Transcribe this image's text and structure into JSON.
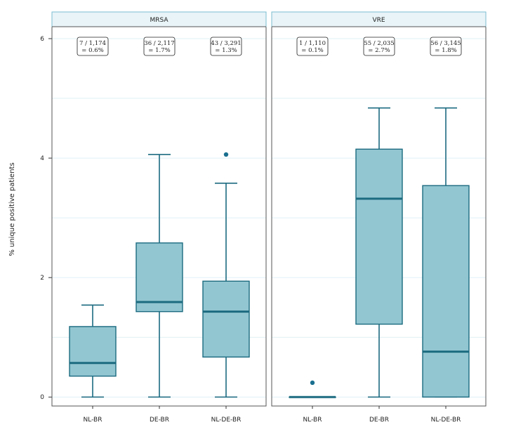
{
  "chart_data": {
    "type": "boxplot",
    "ylabel": "% unique positive patients",
    "xlabel": "",
    "ylim": [
      -0.15,
      6.2
    ],
    "y_ticks": [
      0,
      2,
      4,
      6
    ],
    "y_tick_labels": [
      "0",
      "2",
      "4",
      "6"
    ],
    "categories": [
      "NL-BR",
      "DE-BR",
      "NL-DE-BR"
    ],
    "colors": {
      "box_fill": "#92c6d1",
      "box_stroke": "#1c6b80",
      "strip_fill": "#e8f4f8",
      "strip_stroke": "#7bbcd0",
      "grid": "#dff0f6",
      "outlier": "#1a6f8f"
    },
    "panels": [
      {
        "title": "MRSA",
        "boxes": [
          {
            "category": "NL-BR",
            "min": 0,
            "q1": 0.35,
            "median": 0.57,
            "q3": 1.18,
            "max": 1.54,
            "outliers": [],
            "label_line1": "7 / 1,174",
            "label_line2": "= 0.6%"
          },
          {
            "category": "DE-BR",
            "min": 0,
            "q1": 1.43,
            "median": 1.59,
            "q3": 2.58,
            "max": 4.06,
            "outliers": [],
            "label_line1": "36 / 2,117",
            "label_line2": "= 1.7%"
          },
          {
            "category": "NL-DE-BR",
            "min": 0,
            "q1": 0.67,
            "median": 1.43,
            "q3": 1.94,
            "max": 3.58,
            "outliers": [
              4.06
            ],
            "label_line1": "43 / 3,291",
            "label_line2": "= 1.3%"
          }
        ]
      },
      {
        "title": "VRE",
        "boxes": [
          {
            "category": "NL-BR",
            "min": 0,
            "q1": 0,
            "median": 0,
            "q3": 0,
            "max": 0,
            "outliers": [
              0.24
            ],
            "label_line1": "1 / 1,110",
            "label_line2": "= 0.1%"
          },
          {
            "category": "DE-BR",
            "min": 0,
            "q1": 1.22,
            "median": 3.32,
            "q3": 4.15,
            "max": 4.84,
            "outliers": [],
            "label_line1": "55 / 2,035",
            "label_line2": "= 2.7%"
          },
          {
            "category": "NL-DE-BR",
            "min": 0,
            "q1": 0,
            "median": 0.76,
            "q3": 3.54,
            "max": 4.84,
            "outliers": [],
            "label_line1": "56 / 3,145",
            "label_line2": "= 1.8%"
          }
        ]
      }
    ]
  }
}
